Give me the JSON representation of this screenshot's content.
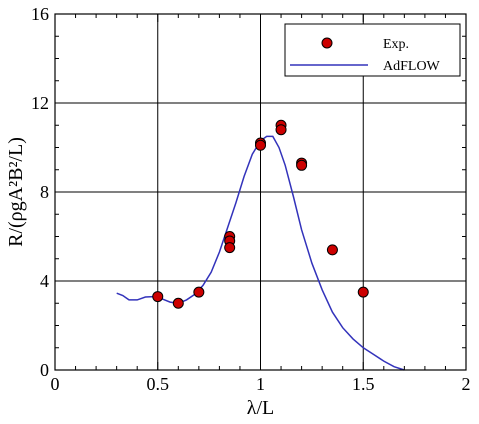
{
  "chart_data": {
    "type": "scatter",
    "xlabel": "λ/L",
    "ylabel": "R/(ρgA²B²/L)",
    "xlim": [
      0,
      2
    ],
    "ylim": [
      0,
      16
    ],
    "xticks": [
      0,
      0.5,
      1,
      1.5,
      2
    ],
    "xtick_labels": [
      "0",
      "0.5",
      "1",
      "1.5",
      "2"
    ],
    "yticks": [
      0,
      4,
      8,
      12,
      16
    ],
    "ytick_labels": [
      "0",
      "4",
      "8",
      "12",
      "16"
    ],
    "grid": true,
    "legend_position": "top-right",
    "series": [
      {
        "name": "Exp.",
        "kind": "scatter",
        "color": "#cc0000",
        "edge_color": "#000000",
        "points": [
          [
            0.5,
            3.3
          ],
          [
            0.6,
            3.0
          ],
          [
            0.7,
            3.5
          ],
          [
            0.85,
            6.0
          ],
          [
            0.85,
            5.8
          ],
          [
            0.85,
            5.5
          ],
          [
            1.0,
            10.2
          ],
          [
            1.0,
            10.1
          ],
          [
            1.1,
            11.0
          ],
          [
            1.1,
            10.8
          ],
          [
            1.2,
            9.3
          ],
          [
            1.2,
            9.2
          ],
          [
            1.35,
            5.4
          ],
          [
            1.5,
            3.5
          ]
        ]
      },
      {
        "name": "AdFLOW",
        "kind": "line",
        "color": "#3333bb",
        "points": [
          [
            0.3,
            3.45
          ],
          [
            0.33,
            3.35
          ],
          [
            0.36,
            3.15
          ],
          [
            0.4,
            3.15
          ],
          [
            0.44,
            3.28
          ],
          [
            0.48,
            3.3
          ],
          [
            0.52,
            3.2
          ],
          [
            0.56,
            3.05
          ],
          [
            0.6,
            3.0
          ],
          [
            0.64,
            3.15
          ],
          [
            0.68,
            3.4
          ],
          [
            0.72,
            3.8
          ],
          [
            0.76,
            4.4
          ],
          [
            0.8,
            5.3
          ],
          [
            0.84,
            6.4
          ],
          [
            0.88,
            7.5
          ],
          [
            0.92,
            8.7
          ],
          [
            0.96,
            9.7
          ],
          [
            1.0,
            10.3
          ],
          [
            1.03,
            10.5
          ],
          [
            1.06,
            10.5
          ],
          [
            1.09,
            10.0
          ],
          [
            1.12,
            9.2
          ],
          [
            1.16,
            7.8
          ],
          [
            1.2,
            6.3
          ],
          [
            1.25,
            4.8
          ],
          [
            1.3,
            3.6
          ],
          [
            1.35,
            2.6
          ],
          [
            1.4,
            1.9
          ],
          [
            1.45,
            1.4
          ],
          [
            1.5,
            1.0
          ],
          [
            1.55,
            0.7
          ],
          [
            1.6,
            0.4
          ],
          [
            1.65,
            0.15
          ],
          [
            1.7,
            0.0
          ]
        ]
      }
    ]
  }
}
